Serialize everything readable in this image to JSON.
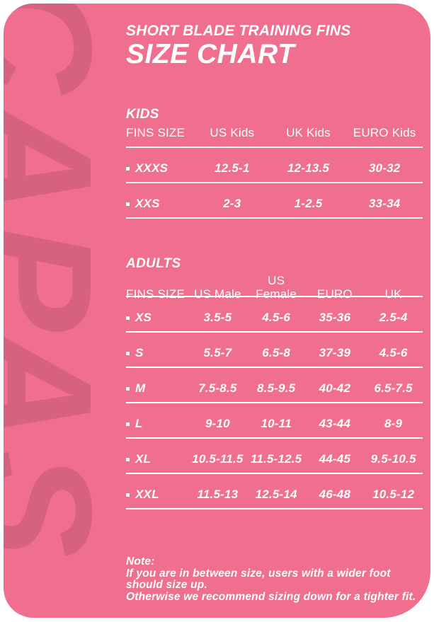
{
  "header": {
    "subtitle": "SHORT BLADE TRAINING FINS",
    "title": "SIZE CHART"
  },
  "watermark": "CAPAS",
  "colors": {
    "panel_background": "#F06E8E",
    "watermark": "#D76180",
    "text": "#FFFFFF"
  },
  "chart_data": [
    {
      "type": "table",
      "section_label": "KIDS",
      "columns": [
        "FINS SIZE",
        "US Kids",
        "UK Kids",
        "EURO Kids"
      ],
      "rows": [
        [
          "XXXS",
          "12.5-1",
          "12-13.5",
          "30-32"
        ],
        [
          "XXS",
          "2-3",
          "1-2.5",
          "33-34"
        ]
      ]
    },
    {
      "type": "table",
      "section_label": "ADULTS",
      "columns": [
        "FINS SIZE",
        "US Male",
        "US Female",
        "EURO",
        "UK"
      ],
      "rows": [
        [
          "XS",
          "3.5-5",
          "4.5-6",
          "35-36",
          "2.5-4"
        ],
        [
          "S",
          "5.5-7",
          "6.5-8",
          "37-39",
          "4.5-6"
        ],
        [
          "M",
          "7.5-8.5",
          "8.5-9.5",
          "40-42",
          "6.5-7.5"
        ],
        [
          "L",
          "9-10",
          "10-11",
          "43-44",
          "8-9"
        ],
        [
          "XL",
          "10.5-11.5",
          "11.5-12.5",
          "44-45",
          "9.5-10.5"
        ],
        [
          "XXL",
          "11.5-13",
          "12.5-14",
          "46-48",
          "10.5-12"
        ]
      ]
    }
  ],
  "note": {
    "label": "Note:",
    "lines": [
      "If you are in between size, users with a wider foot",
      "should size up.",
      "Otherwise we recommend sizing down for a tighter fit."
    ]
  }
}
